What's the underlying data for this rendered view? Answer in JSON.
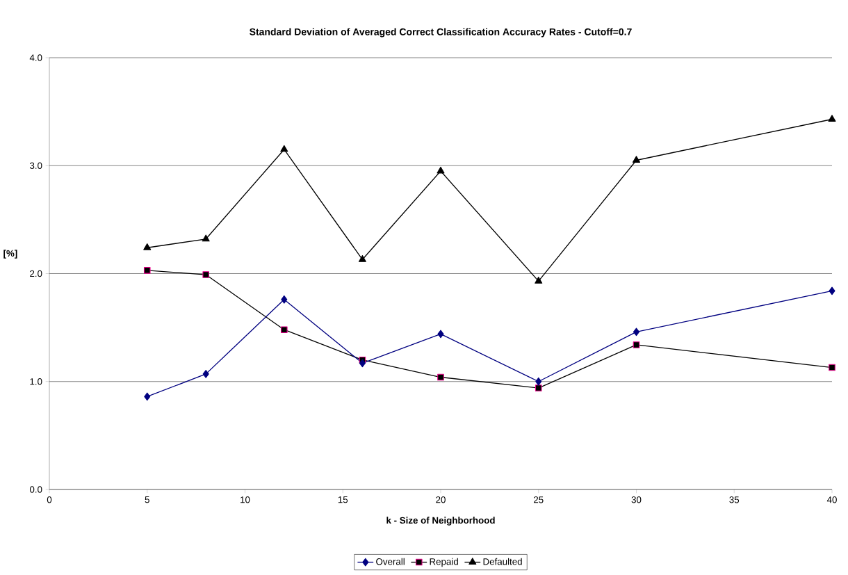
{
  "chart_data": {
    "type": "line",
    "title": "Standard Deviation of Averaged Correct Classification Accuracy Rates - Cutoff=0.7",
    "xlabel": "k - Size of Neighborhood",
    "ylabel": "[%]",
    "x": [
      5,
      8,
      12,
      16,
      20,
      25,
      30,
      40
    ],
    "series": [
      {
        "name": "Overall",
        "color": "#000080",
        "marker": "diamond",
        "values": [
          0.86,
          1.07,
          1.76,
          1.17,
          1.44,
          1.0,
          1.46,
          1.84
        ]
      },
      {
        "name": "Repaid",
        "color": "#000000",
        "marker": "square",
        "values": [
          2.03,
          1.99,
          1.48,
          1.2,
          1.04,
          0.94,
          1.34,
          1.13
        ]
      },
      {
        "name": "Defaulted",
        "color": "#000000",
        "marker": "triangle",
        "values": [
          2.24,
          2.32,
          3.15,
          2.13,
          2.95,
          1.93,
          3.05,
          3.43
        ]
      }
    ],
    "xlim": [
      0,
      40
    ],
    "xticks": [
      0,
      5,
      10,
      15,
      20,
      25,
      30,
      35,
      40
    ],
    "ylim": [
      0,
      4
    ],
    "yticks": [
      {
        "value": 0,
        "label": "0.0"
      },
      {
        "value": 1,
        "label": "1.0"
      },
      {
        "value": 2,
        "label": "2.0"
      },
      {
        "value": 3,
        "label": "3.0"
      },
      {
        "value": 4,
        "label": "4.0"
      }
    ],
    "grid": "y",
    "legend": "bottom",
    "line_style": "solid"
  }
}
